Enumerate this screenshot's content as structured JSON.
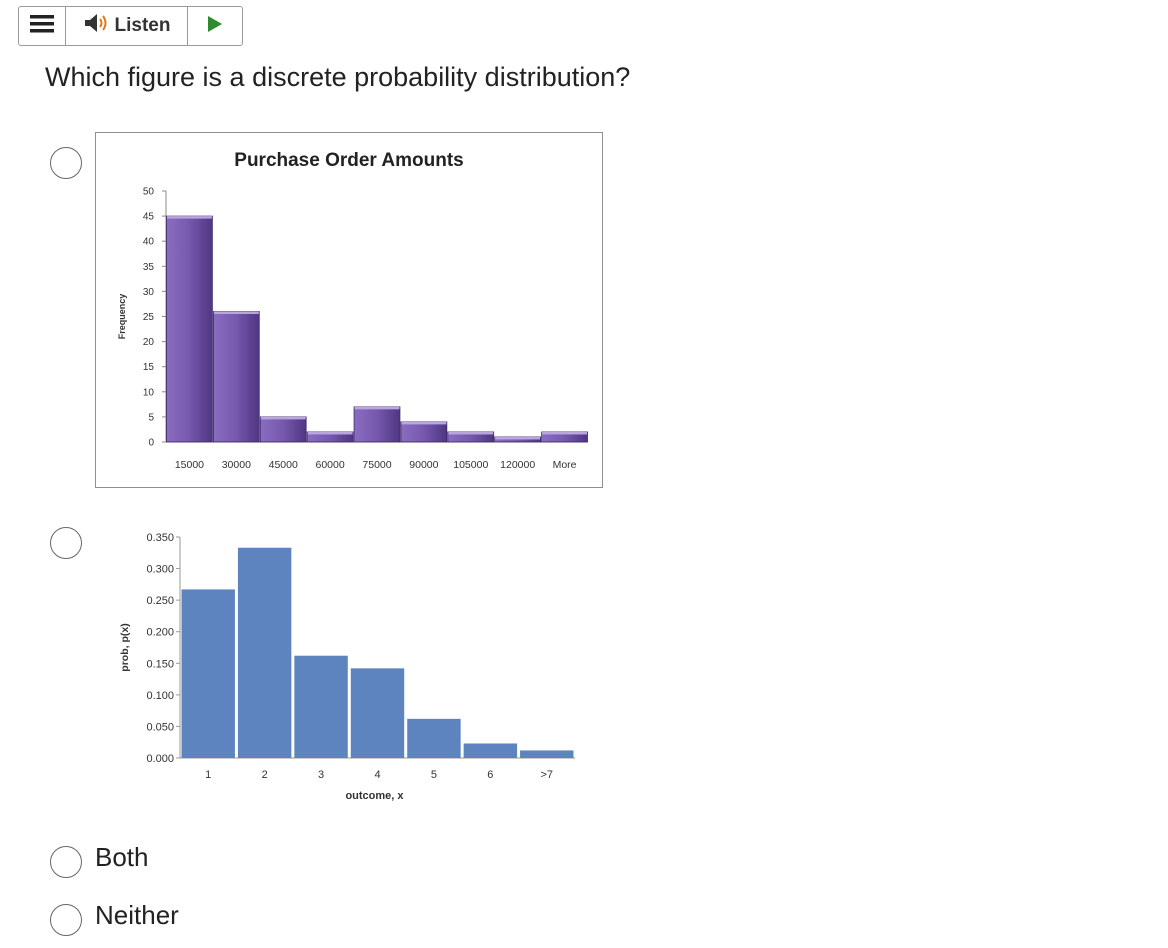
{
  "toolbar": {
    "listen_label": "Listen",
    "menu_icon": "hamburger-icon",
    "speaker_icon": "speaker-icon",
    "play_icon": "play-icon",
    "play_color": "#2e8b2e",
    "speaker_wave_color": "#e07a1f"
  },
  "question": "Which figure is a discrete probability distribution?",
  "options": [
    {
      "type": "image",
      "label": ""
    },
    {
      "type": "image",
      "label": ""
    },
    {
      "type": "text",
      "label": "Both"
    },
    {
      "type": "text",
      "label": "Neither"
    }
  ],
  "chart_data": [
    {
      "type": "bar",
      "title": "Purchase Order Amounts",
      "xlabel": "",
      "ylabel": "Frequency",
      "categories": [
        "15000",
        "30000",
        "45000",
        "60000",
        "75000",
        "90000",
        "105000",
        "120000",
        "More"
      ],
      "values": [
        45,
        26,
        5,
        2,
        7,
        4,
        2,
        1,
        2
      ],
      "ylim": [
        0,
        50
      ],
      "yticks": [
        0,
        5,
        10,
        15,
        20,
        25,
        30,
        35,
        40,
        45,
        50
      ],
      "color": "#6a4c9c",
      "grid": false
    },
    {
      "type": "bar",
      "title": "",
      "xlabel": "outcome, x",
      "ylabel": "prob, p(x)",
      "categories": [
        "1",
        "2",
        "3",
        "4",
        "5",
        "6",
        ">7"
      ],
      "values": [
        0.267,
        0.333,
        0.162,
        0.142,
        0.062,
        0.023,
        0.012
      ],
      "ylim": [
        0,
        0.35
      ],
      "yticks": [
        "0.000",
        "0.050",
        "0.100",
        "0.150",
        "0.200",
        "0.250",
        "0.300",
        "0.350"
      ],
      "color": "#5e84c0",
      "grid": false
    }
  ]
}
